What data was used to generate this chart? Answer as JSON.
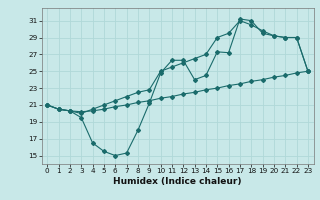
{
  "xlabel": "Humidex (Indice chaleur)",
  "bg_color": "#c8e8e8",
  "grid_color": "#b0d8d8",
  "line_color": "#1a6b6b",
  "xlim": [
    -0.5,
    23.5
  ],
  "ylim": [
    14,
    32.5
  ],
  "xticks": [
    0,
    1,
    2,
    3,
    4,
    5,
    6,
    7,
    8,
    9,
    10,
    11,
    12,
    13,
    14,
    15,
    16,
    17,
    18,
    19,
    20,
    21,
    22,
    23
  ],
  "yticks": [
    15,
    17,
    19,
    21,
    23,
    25,
    27,
    29,
    31
  ],
  "line1_x": [
    0,
    1,
    2,
    3,
    4,
    5,
    6,
    7,
    8,
    9,
    10,
    11,
    12,
    13,
    14,
    15,
    16,
    17,
    18,
    19,
    20,
    21,
    22,
    23
  ],
  "line1_y": [
    21.0,
    20.5,
    20.3,
    19.5,
    16.5,
    15.5,
    15.0,
    15.3,
    18.0,
    21.2,
    24.8,
    26.3,
    26.3,
    24.0,
    24.5,
    27.3,
    27.2,
    31.2,
    31.0,
    29.5,
    29.2,
    29.0,
    29.0,
    25.0
  ],
  "line2_x": [
    0,
    1,
    2,
    3,
    4,
    5,
    6,
    7,
    8,
    9,
    10,
    11,
    12,
    13,
    14,
    15,
    16,
    17,
    18,
    19,
    20,
    21,
    22,
    23
  ],
  "line2_y": [
    21.0,
    20.5,
    20.3,
    20.2,
    20.3,
    20.5,
    20.8,
    21.0,
    21.3,
    21.5,
    21.8,
    22.0,
    22.3,
    22.5,
    22.8,
    23.0,
    23.3,
    23.5,
    23.8,
    24.0,
    24.3,
    24.5,
    24.8,
    25.0
  ],
  "line3_x": [
    0,
    1,
    2,
    3,
    4,
    5,
    6,
    7,
    8,
    9,
    10,
    11,
    12,
    13,
    14,
    15,
    16,
    17,
    18,
    19,
    20,
    21,
    22,
    23
  ],
  "line3_y": [
    21.0,
    20.5,
    20.3,
    20.0,
    20.5,
    21.0,
    21.5,
    22.0,
    22.5,
    22.8,
    25.0,
    25.5,
    26.0,
    26.5,
    27.0,
    29.0,
    29.5,
    31.0,
    30.5,
    29.8,
    29.2,
    29.0,
    29.0,
    25.0
  ],
  "xlabel_fontsize": 6.5,
  "tick_fontsize": 5.2,
  "marker_size": 2.0
}
